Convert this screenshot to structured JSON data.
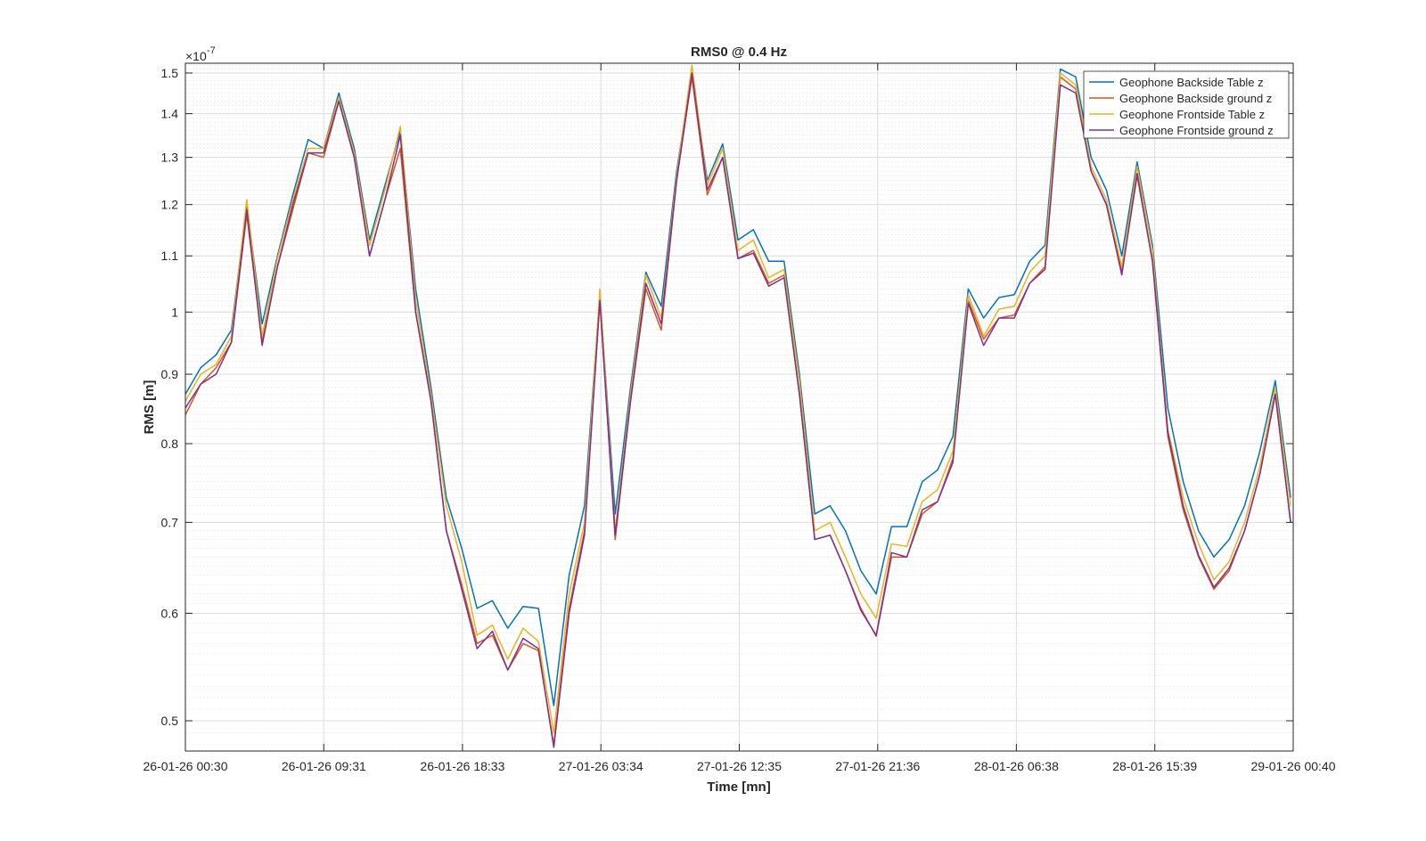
{
  "chart_data": {
    "type": "line",
    "title": "RMS0 @ 0.4 Hz",
    "xlabel": "Time [mn]",
    "ylabel": "RMS [m]",
    "y_scale": "log",
    "y_exponent_label": "×10",
    "y_exponent": "-7",
    "y_multiplier": 1e-07,
    "ylim": [
      0.475,
      1.525
    ],
    "yticks": [
      0.5,
      0.6,
      0.7,
      0.8,
      0.9,
      1,
      1.1,
      1.2,
      1.3,
      1.4,
      1.5
    ],
    "ytick_labels": [
      "0.5",
      "0.6",
      "0.7",
      "0.8",
      "0.9",
      "1",
      "1.1",
      "1.2",
      "1.3",
      "1.4",
      "1.5"
    ],
    "xlim": [
      "26-01-26 00:30",
      "29-01-26 00:40"
    ],
    "xticks": [
      "26-01-26 00:30",
      "26-01-26 09:31",
      "26-01-26 18:33",
      "27-01-26 03:34",
      "27-01-26 12:35",
      "27-01-26 21:36",
      "28-01-26 06:38",
      "28-01-26 15:39",
      "29-01-26 00:40"
    ],
    "grid": true,
    "minor_grid": true,
    "legend_position": "top-right",
    "x": [
      "26-01-26 00:30",
      "26-01-26 01:30",
      "26-01-26 02:30",
      "26-01-26 03:30",
      "26-01-26 04:30",
      "26-01-26 05:30",
      "26-01-26 06:30",
      "26-01-26 07:30",
      "26-01-26 08:30",
      "26-01-26 09:30",
      "26-01-26 10:30",
      "26-01-26 11:30",
      "26-01-26 12:30",
      "26-01-26 13:30",
      "26-01-26 14:30",
      "26-01-26 15:30",
      "26-01-26 16:30",
      "26-01-26 17:30",
      "26-01-26 18:30",
      "26-01-26 19:30",
      "26-01-26 20:30",
      "26-01-26 21:30",
      "26-01-26 22:30",
      "26-01-26 23:30",
      "27-01-26 00:30",
      "27-01-26 01:30",
      "27-01-26 02:30",
      "27-01-26 03:30",
      "27-01-26 04:30",
      "27-01-26 05:30",
      "27-01-26 06:30",
      "27-01-26 07:30",
      "27-01-26 08:30",
      "27-01-26 09:30",
      "27-01-26 10:30",
      "27-01-26 11:30",
      "27-01-26 12:30",
      "27-01-26 13:30",
      "27-01-26 14:30",
      "27-01-26 15:30",
      "27-01-26 16:30",
      "27-01-26 17:30",
      "27-01-26 18:30",
      "27-01-26 19:30",
      "27-01-26 20:30",
      "27-01-26 21:30",
      "27-01-26 22:30",
      "27-01-26 23:30",
      "28-01-26 00:30",
      "28-01-26 01:30",
      "28-01-26 02:30",
      "28-01-26 03:30",
      "28-01-26 04:30",
      "28-01-26 05:30",
      "28-01-26 06:30",
      "28-01-26 07:30",
      "28-01-26 08:30",
      "28-01-26 09:30",
      "28-01-26 10:30",
      "28-01-26 11:30",
      "28-01-26 12:30",
      "28-01-26 13:30",
      "28-01-26 14:30",
      "28-01-26 15:30",
      "28-01-26 16:30",
      "28-01-26 17:30",
      "28-01-26 18:30",
      "28-01-26 19:30",
      "28-01-26 20:30",
      "28-01-26 21:30",
      "28-01-26 22:30",
      "28-01-26 23:30",
      "29-01-26 00:30"
    ],
    "series": [
      {
        "name": "Geophone Backside Table z",
        "color": "#0072BD",
        "values": [
          0.87,
          0.91,
          0.93,
          0.97,
          1.2,
          0.98,
          1.1,
          1.22,
          1.34,
          1.32,
          1.45,
          1.32,
          1.13,
          1.24,
          1.36,
          1.04,
          0.88,
          0.73,
          0.67,
          0.605,
          0.613,
          0.585,
          0.607,
          0.605,
          0.513,
          0.64,
          0.72,
          1.03,
          0.71,
          0.88,
          1.07,
          1.01,
          1.27,
          1.5,
          1.25,
          1.33,
          1.13,
          1.15,
          1.09,
          1.09,
          0.9,
          0.71,
          0.72,
          0.69,
          0.645,
          0.62,
          0.695,
          0.695,
          0.75,
          0.765,
          0.81,
          1.04,
          0.99,
          1.025,
          1.03,
          1.09,
          1.12,
          1.51,
          1.49,
          1.3,
          1.23,
          1.1,
          1.29,
          1.12,
          0.85,
          0.75,
          0.69,
          0.66,
          0.68,
          0.72,
          0.79,
          0.89,
          0.73
        ]
      },
      {
        "name": "Geophone Backside ground z",
        "color": "#D95319",
        "values": [
          0.84,
          0.885,
          0.91,
          0.95,
          1.18,
          0.95,
          1.08,
          1.19,
          1.31,
          1.3,
          1.43,
          1.3,
          1.1,
          1.21,
          1.32,
          1.0,
          0.86,
          0.69,
          0.63,
          0.57,
          0.578,
          0.545,
          0.57,
          0.563,
          0.48,
          0.605,
          0.69,
          1.02,
          0.68,
          0.86,
          1.04,
          0.97,
          1.25,
          1.49,
          1.22,
          1.3,
          1.095,
          1.11,
          1.05,
          1.065,
          0.87,
          0.68,
          0.685,
          0.645,
          0.605,
          0.577,
          0.66,
          0.66,
          0.71,
          0.725,
          0.78,
          1.02,
          0.955,
          0.99,
          0.995,
          1.05,
          1.08,
          1.49,
          1.46,
          1.27,
          1.2,
          1.07,
          1.26,
          1.09,
          0.81,
          0.715,
          0.66,
          0.625,
          0.645,
          0.69,
          0.76,
          0.87,
          0.7
        ]
      },
      {
        "name": "Geophone Frontside Table z",
        "color": "#EDB120",
        "values": [
          0.86,
          0.9,
          0.915,
          0.96,
          1.21,
          0.96,
          1.095,
          1.21,
          1.32,
          1.32,
          1.44,
          1.31,
          1.12,
          1.23,
          1.37,
          1.02,
          0.87,
          0.72,
          0.655,
          0.578,
          0.588,
          0.555,
          0.585,
          0.572,
          0.49,
          0.62,
          0.7,
          1.04,
          0.69,
          0.87,
          1.065,
          0.99,
          1.26,
          1.52,
          1.24,
          1.32,
          1.11,
          1.13,
          1.06,
          1.075,
          0.89,
          0.69,
          0.7,
          0.66,
          0.62,
          0.595,
          0.675,
          0.672,
          0.725,
          0.74,
          0.79,
          1.03,
          0.96,
          1.005,
          1.01,
          1.07,
          1.1,
          1.5,
          1.47,
          1.28,
          1.21,
          1.08,
          1.28,
          1.11,
          0.82,
          0.73,
          0.675,
          0.635,
          0.655,
          0.7,
          0.77,
          0.88,
          0.72
        ]
      },
      {
        "name": "Geophone Frontside ground z",
        "color": "#7E2F8E",
        "values": [
          0.85,
          0.885,
          0.9,
          0.95,
          1.19,
          0.945,
          1.08,
          1.2,
          1.31,
          1.31,
          1.43,
          1.3,
          1.1,
          1.21,
          1.35,
          1.0,
          0.86,
          0.69,
          0.625,
          0.565,
          0.582,
          0.545,
          0.575,
          0.565,
          0.478,
          0.6,
          0.685,
          1.02,
          0.685,
          0.86,
          1.05,
          0.98,
          1.25,
          1.5,
          1.23,
          1.3,
          1.095,
          1.105,
          1.045,
          1.06,
          0.87,
          0.68,
          0.685,
          0.645,
          0.603,
          0.578,
          0.665,
          0.66,
          0.715,
          0.725,
          0.775,
          1.015,
          0.945,
          0.99,
          0.99,
          1.05,
          1.075,
          1.47,
          1.45,
          1.27,
          1.2,
          1.065,
          1.265,
          1.09,
          0.815,
          0.72,
          0.662,
          0.627,
          0.648,
          0.69,
          0.76,
          0.87,
          0.7
        ]
      }
    ]
  }
}
